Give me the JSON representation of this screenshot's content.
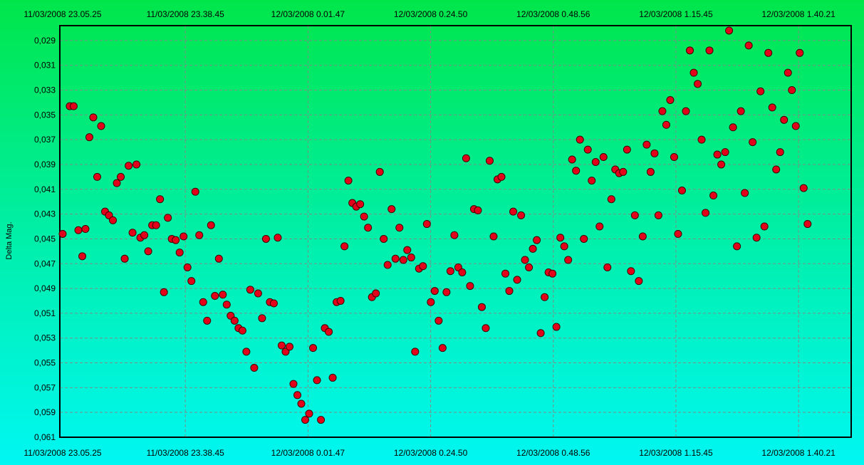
{
  "chart_data": {
    "type": "scatter",
    "title": "",
    "xlabel": "",
    "ylabel": "Delta Mag.",
    "x_tick_labels": [
      "11/03/2008 23.05.25",
      "11/03/2008 23.38.45",
      "12/03/2008 0.01.47",
      "12/03/2008 0.24.50",
      "12/03/2008 0.48.56",
      "12/03/2008 1.15.45",
      "12/03/2008 1.40.21"
    ],
    "y_tick_labels": [
      "0,029",
      "0,031",
      "0,033",
      "0,035",
      "0,037",
      "0,039",
      "0,041",
      "0,043",
      "0,045",
      "0,047",
      "0,049",
      "0,051",
      "0,053",
      "0,055",
      "0,057",
      "0,059",
      "0,061"
    ],
    "ylim": [
      0.061,
      0.0278
    ],
    "y_inverted": true,
    "grid": true,
    "colors": {
      "point_fill": "#e3001b",
      "point_stroke": "#400000",
      "grid": "#7a8e88",
      "axis": "#000000"
    },
    "series": [
      {
        "x_fraction_of_span": [
          0.0,
          0.009,
          0.014,
          0.02,
          0.025,
          0.029,
          0.034,
          0.039,
          0.044,
          0.049,
          0.054,
          0.059,
          0.064,
          0.069,
          0.074,
          0.079,
          0.084,
          0.089,
          0.094,
          0.099,
          0.104,
          0.109,
          0.114,
          0.119,
          0.124,
          0.129,
          0.134,
          0.139,
          0.144,
          0.149,
          0.154,
          0.159,
          0.164,
          0.169,
          0.174,
          0.179,
          0.184,
          0.189,
          0.194,
          0.199,
          0.204,
          0.209,
          0.214,
          0.219,
          0.224,
          0.229,
          0.234,
          0.239,
          0.244,
          0.249,
          0.254,
          0.259,
          0.264,
          0.269,
          0.274,
          0.279,
          0.284,
          0.289,
          0.294,
          0.299,
          0.304,
          0.309,
          0.314,
          0.319,
          0.324,
          0.329,
          0.334,
          0.339,
          0.344,
          0.349,
          0.354,
          0.359,
          0.364,
          0.369,
          0.374,
          0.379,
          0.384,
          0.389,
          0.394,
          0.399,
          0.404,
          0.409,
          0.414,
          0.419,
          0.424,
          0.429,
          0.434,
          0.439,
          0.444,
          0.449,
          0.454,
          0.459,
          0.464,
          0.469,
          0.474,
          0.479,
          0.484,
          0.489,
          0.494,
          0.499,
          0.504,
          0.509,
          0.514,
          0.519,
          0.524,
          0.529,
          0.534,
          0.539,
          0.544,
          0.549,
          0.554,
          0.559,
          0.564,
          0.569,
          0.574,
          0.579,
          0.584,
          0.589,
          0.594,
          0.599,
          0.604,
          0.609,
          0.614,
          0.619,
          0.624,
          0.629,
          0.634,
          0.639,
          0.644,
          0.649,
          0.654,
          0.659,
          0.664,
          0.669,
          0.674,
          0.679,
          0.684,
          0.689,
          0.694,
          0.699,
          0.704,
          0.709,
          0.714,
          0.719,
          0.724,
          0.729,
          0.734,
          0.739,
          0.744,
          0.749,
          0.754,
          0.759,
          0.764,
          0.769,
          0.774,
          0.779,
          0.784,
          0.789,
          0.794,
          0.799,
          0.804,
          0.809,
          0.814,
          0.819,
          0.824,
          0.829,
          0.834,
          0.839,
          0.844,
          0.849,
          0.854,
          0.859,
          0.864,
          0.869,
          0.874,
          0.879,
          0.884,
          0.889,
          0.894,
          0.899,
          0.904,
          0.909,
          0.914,
          0.919,
          0.924,
          0.929,
          0.934,
          0.939,
          0.944,
          0.949,
          0.954,
          0.959,
          0.964,
          0.969,
          0.974,
          0.979,
          0.984,
          0.989,
          0.994,
          0.999
        ],
        "y": [
          0.0446,
          0.0343,
          0.0343,
          0.0443,
          0.0464,
          0.0442,
          0.0368,
          0.0352,
          0.04,
          0.0359,
          0.0428,
          0.0431,
          0.0435,
          0.0405,
          0.04,
          0.0466,
          0.0391,
          0.0445,
          0.039,
          0.0449,
          0.0447,
          0.046,
          0.0439,
          0.0439,
          0.0418,
          0.0493,
          0.0433,
          0.045,
          0.0451,
          0.0461,
          0.0448,
          0.0473,
          0.0484,
          0.0412,
          0.0447,
          0.0501,
          0.0516,
          0.0439,
          0.0496,
          0.0466,
          0.0495,
          0.0503,
          0.0512,
          0.0516,
          0.0522,
          0.0524,
          0.0541,
          0.0491,
          0.0554,
          0.0494,
          0.0514,
          0.045,
          0.0501,
          0.0502,
          0.0449,
          0.0536,
          0.0541,
          0.0537,
          0.0567,
          0.0576,
          0.0583,
          0.0596,
          0.0591,
          0.0538,
          0.0564,
          0.0596,
          0.0522,
          0.0525,
          0.0562,
          0.0501,
          0.05,
          0.0456,
          0.0403,
          0.0421,
          0.0424,
          0.0422,
          0.0432,
          0.0441,
          0.0497,
          0.0494,
          0.0396,
          0.045,
          0.0471,
          0.0426,
          0.0466,
          0.0441,
          0.0467,
          0.0459,
          0.0465,
          0.0541,
          0.0474,
          0.0472,
          0.0438,
          0.0501,
          0.0492,
          0.0516,
          0.0538,
          0.0493,
          0.0476,
          0.0447,
          0.0473,
          0.0477,
          0.0385,
          0.0488,
          0.0426,
          0.0427,
          0.0505,
          0.0522,
          0.0387,
          0.0448,
          0.0402,
          0.04,
          0.0478,
          0.0492,
          0.0428,
          0.0483,
          0.0431,
          0.0467,
          0.0473,
          0.0458,
          0.0451,
          0.0526,
          0.0497,
          0.0477,
          0.0478,
          0.0521,
          0.0449,
          0.0456,
          0.0467,
          0.0386,
          0.0395,
          0.037,
          0.045,
          0.0378,
          0.0403,
          0.0388,
          0.044,
          0.0384,
          0.0473,
          0.0418,
          0.0394,
          0.0397,
          0.0396,
          0.0378,
          0.0476,
          0.0431,
          0.0484,
          0.0448,
          0.0374,
          0.0396,
          0.0381,
          0.0431,
          0.0347,
          0.0358,
          0.0338,
          0.0384,
          0.0446,
          0.0411,
          0.0347,
          0.0298,
          0.0316,
          0.0325,
          0.037,
          0.0429,
          0.0298,
          0.0415,
          0.0382,
          0.039,
          0.038,
          0.0282,
          0.036,
          0.0456,
          0.0347,
          0.0413,
          0.0294,
          0.0372,
          0.0449,
          0.0331,
          0.044,
          0.03,
          0.0344,
          0.0394,
          0.038,
          0.0354,
          0.0316,
          0.033,
          0.0359,
          0.03,
          0.0409,
          0.0438
        ]
      }
    ]
  }
}
